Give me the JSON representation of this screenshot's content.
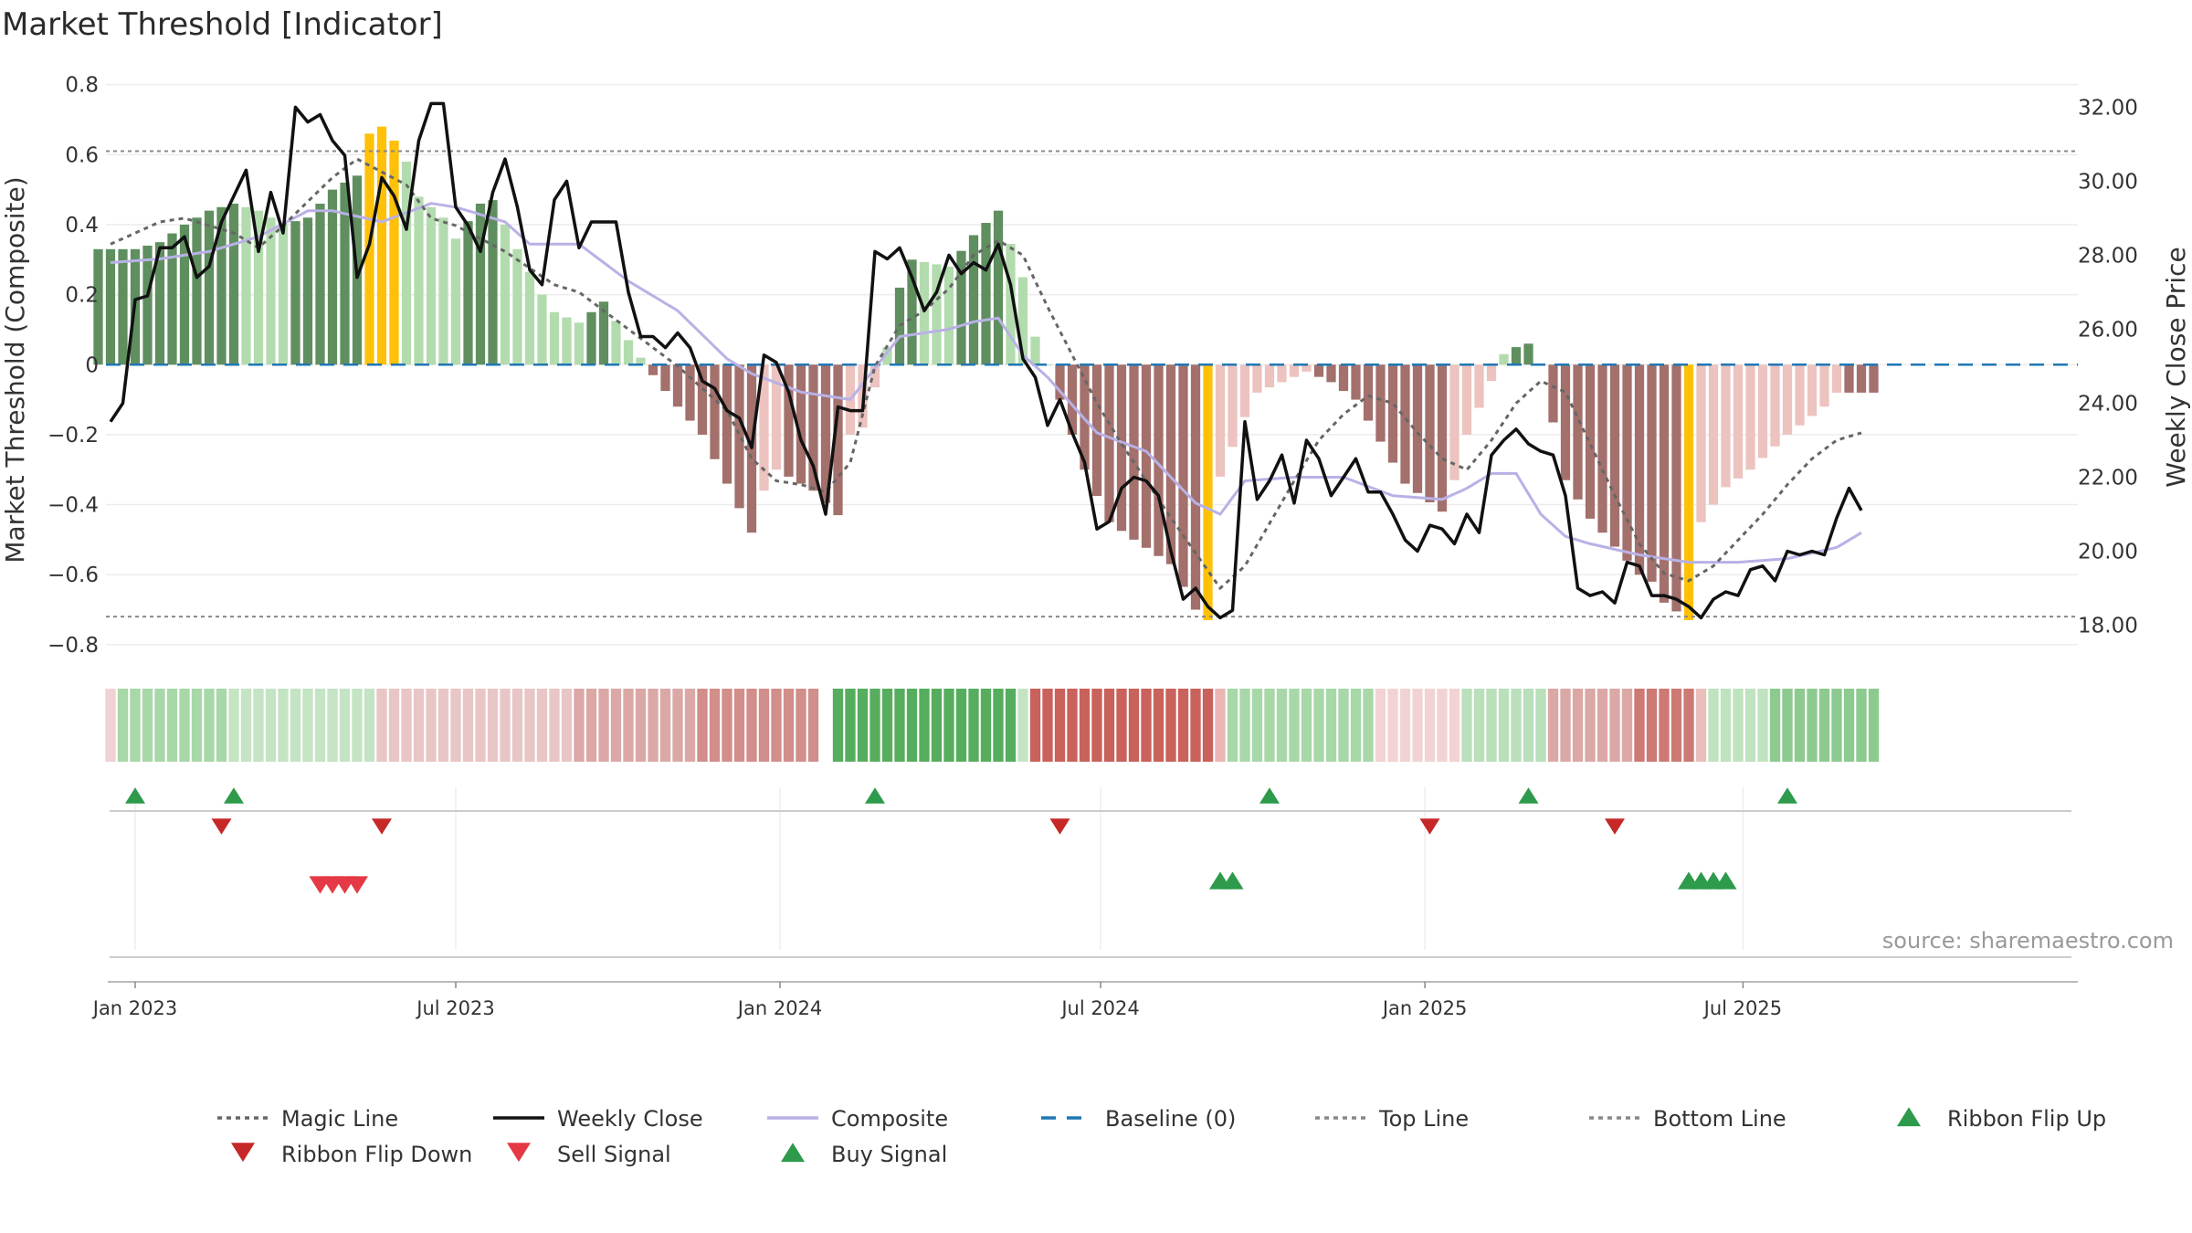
{
  "title": "Market Threshold [Indicator]",
  "source": "source: sharemaestro.com",
  "colors": {
    "bar_green_dark": "#5f8f5f",
    "bar_green_light": "#b3dcae",
    "bar_red_dark": "#a3706c",
    "bar_red_light": "#ecc3bf",
    "bar_extreme": "#ffc107",
    "close": "#111111",
    "composite": "#b9b1e6",
    "magic": "#666666",
    "baseline": "#1f77b4",
    "threshold": "#888888",
    "signal_green": "#2e9a4b",
    "signal_red": "#d32f2f"
  },
  "chart_data": {
    "type": "bar+line",
    "title": "Market Threshold [Indicator]",
    "ylabel_left": "Market Threshold (Composite)",
    "ylabel_right": "Weekly Close Price",
    "ylim_left": [
      -0.85,
      0.82
    ],
    "ylim_right": [
      17.0,
      32.8
    ],
    "yticks_left": [
      "0.8",
      "0.6",
      "0.4",
      "0.2",
      "0",
      "−0.2",
      "−0.4",
      "−0.6",
      "−0.8"
    ],
    "yticks_left_values": [
      0.8,
      0.6,
      0.4,
      0.2,
      0,
      -0.2,
      -0.4,
      -0.6,
      -0.8
    ],
    "yticks_right": [
      "32.00",
      "30.00",
      "28.00",
      "26.00",
      "24.00",
      "22.00",
      "20.00",
      "18.00"
    ],
    "yticks_right_values": [
      32,
      30,
      28,
      26,
      24,
      22,
      20,
      18
    ],
    "x_start_week": -3,
    "week_count": 145,
    "xticks": [
      {
        "label": "Jan 2023",
        "week": 0
      },
      {
        "label": "Jul 2023",
        "week": 26
      },
      {
        "label": "Jan 2024",
        "week": 52.3
      },
      {
        "label": "Jul 2024",
        "week": 78.3
      },
      {
        "label": "Jan 2025",
        "week": 104.6
      },
      {
        "label": "Jul 2025",
        "week": 130.4
      }
    ],
    "top_line": 0.61,
    "bottom_line": -0.72,
    "baseline": 0,
    "composite_knots": [
      [
        0,
        0.33
      ],
      [
        2,
        0.35
      ],
      [
        4,
        0.4
      ],
      [
        6,
        0.44
      ],
      [
        8,
        0.46
      ],
      [
        10,
        0.44
      ],
      [
        12,
        0.4
      ],
      [
        14,
        0.42
      ],
      [
        16,
        0.5
      ],
      [
        18,
        0.54
      ],
      [
        19,
        0.66
      ],
      [
        20,
        0.68
      ],
      [
        21,
        0.64
      ],
      [
        22,
        0.58
      ],
      [
        23,
        0.48
      ],
      [
        25,
        0.42
      ],
      [
        26,
        0.36
      ],
      [
        28,
        0.46
      ],
      [
        29,
        0.47
      ],
      [
        31,
        0.33
      ],
      [
        33,
        0.2
      ],
      [
        34,
        0.15
      ],
      [
        36,
        0.12
      ],
      [
        38,
        0.18
      ],
      [
        40,
        0.07
      ],
      [
        41,
        0.02
      ],
      [
        42,
        -0.03
      ],
      [
        44,
        -0.12
      ],
      [
        46,
        -0.2
      ],
      [
        48,
        -0.34
      ],
      [
        50,
        -0.48
      ],
      [
        51,
        -0.36
      ],
      [
        52,
        -0.3
      ],
      [
        55,
        -0.36
      ],
      [
        57,
        -0.43
      ],
      [
        58,
        -0.2
      ],
      [
        59,
        -0.18
      ],
      [
        61,
        0.05
      ],
      [
        62,
        0.22
      ],
      [
        63,
        0.3
      ],
      [
        66,
        0.28
      ],
      [
        68,
        0.37
      ],
      [
        70,
        0.44
      ],
      [
        72,
        0.25
      ],
      [
        73,
        0.08
      ],
      [
        74,
        0
      ],
      [
        75,
        -0.1
      ],
      [
        77,
        -0.3
      ],
      [
        79,
        -0.45
      ],
      [
        81,
        -0.5
      ],
      [
        84,
        -0.57
      ],
      [
        86,
        -0.7
      ],
      [
        87,
        -0.73
      ],
      [
        88,
        -0.32
      ],
      [
        90,
        -0.15
      ],
      [
        91,
        -0.08
      ],
      [
        93,
        -0.05
      ],
      [
        95,
        -0.02
      ],
      [
        97,
        -0.05
      ],
      [
        99,
        -0.1
      ],
      [
        101,
        -0.22
      ],
      [
        103,
        -0.34
      ],
      [
        106,
        -0.42
      ],
      [
        107,
        -0.33
      ],
      [
        108,
        -0.2
      ],
      [
        111,
        0.03
      ],
      [
        112,
        0.05
      ],
      [
        113,
        0.06
      ],
      [
        114,
        0
      ],
      [
        116,
        -0.33
      ],
      [
        118,
        -0.44
      ],
      [
        120,
        -0.52
      ],
      [
        122,
        -0.6
      ],
      [
        123,
        -0.62
      ],
      [
        124,
        -0.68
      ],
      [
        126,
        -0.73
      ],
      [
        127,
        -0.45
      ],
      [
        129,
        -0.35
      ],
      [
        131,
        -0.3
      ],
      [
        134,
        -0.2
      ],
      [
        137,
        -0.12
      ],
      [
        138,
        -0.08
      ]
    ],
    "close_knots": [
      [
        -2,
        23.5
      ],
      [
        -1,
        24.0
      ],
      [
        0,
        26.8
      ],
      [
        1,
        26.9
      ],
      [
        2,
        28.2
      ],
      [
        3,
        28.2
      ],
      [
        4,
        28.5
      ],
      [
        5,
        27.4
      ],
      [
        6,
        27.7
      ],
      [
        7,
        28.9
      ],
      [
        8,
        29.6
      ],
      [
        9,
        30.3
      ],
      [
        10,
        28.1
      ],
      [
        11,
        29.7
      ],
      [
        12,
        28.6
      ],
      [
        13,
        32.0
      ],
      [
        14,
        31.6
      ],
      [
        15,
        31.8
      ],
      [
        16,
        31.1
      ],
      [
        17,
        30.7
      ],
      [
        18,
        27.4
      ],
      [
        19,
        28.3
      ],
      [
        20,
        30.1
      ],
      [
        21,
        29.6
      ],
      [
        22,
        28.7
      ],
      [
        23,
        31.1
      ],
      [
        24,
        32.1
      ],
      [
        25,
        32.1
      ],
      [
        26,
        29.3
      ],
      [
        27,
        28.8
      ],
      [
        28,
        28.1
      ],
      [
        29,
        29.7
      ],
      [
        30,
        30.6
      ],
      [
        31,
        29.3
      ],
      [
        32,
        27.6
      ],
      [
        33,
        27.2
      ],
      [
        34,
        29.5
      ],
      [
        35,
        30.0
      ],
      [
        36,
        28.2
      ],
      [
        37,
        28.9
      ],
      [
        38,
        28.9
      ],
      [
        39,
        28.9
      ],
      [
        40,
        27.0
      ],
      [
        41,
        25.8
      ],
      [
        42,
        25.8
      ],
      [
        43,
        25.5
      ],
      [
        44,
        25.9
      ],
      [
        45,
        25.5
      ],
      [
        46,
        24.6
      ],
      [
        47,
        24.4
      ],
      [
        48,
        23.8
      ],
      [
        49,
        23.6
      ],
      [
        50,
        22.8
      ],
      [
        51,
        25.3
      ],
      [
        52,
        25.1
      ],
      [
        53,
        24.3
      ],
      [
        54,
        23.0
      ],
      [
        55,
        22.3
      ],
      [
        56,
        21.0
      ],
      [
        57,
        23.9
      ],
      [
        58,
        23.8
      ],
      [
        59,
        23.8
      ],
      [
        60,
        28.1
      ],
      [
        61,
        27.9
      ],
      [
        62,
        28.2
      ],
      [
        63,
        27.4
      ],
      [
        64,
        26.5
      ],
      [
        65,
        27.0
      ],
      [
        66,
        28.0
      ],
      [
        67,
        27.5
      ],
      [
        68,
        27.8
      ],
      [
        69,
        27.6
      ],
      [
        70,
        28.3
      ],
      [
        71,
        27.2
      ],
      [
        72,
        25.2
      ],
      [
        73,
        24.7
      ],
      [
        74,
        23.4
      ],
      [
        75,
        24.1
      ],
      [
        76,
        23.2
      ],
      [
        77,
        22.4
      ],
      [
        78,
        20.6
      ],
      [
        79,
        20.8
      ],
      [
        80,
        21.7
      ],
      [
        81,
        22.0
      ],
      [
        82,
        21.9
      ],
      [
        83,
        21.5
      ],
      [
        84,
        20.0
      ],
      [
        85,
        18.7
      ],
      [
        86,
        19.0
      ],
      [
        87,
        18.5
      ],
      [
        88,
        18.2
      ],
      [
        89,
        18.4
      ],
      [
        90,
        23.5
      ],
      [
        91,
        21.4
      ],
      [
        92,
        21.9
      ],
      [
        93,
        22.6
      ],
      [
        94,
        21.3
      ],
      [
        95,
        23.0
      ],
      [
        96,
        22.5
      ],
      [
        97,
        21.5
      ],
      [
        98,
        22.0
      ],
      [
        99,
        22.5
      ],
      [
        100,
        21.6
      ],
      [
        101,
        21.6
      ],
      [
        102,
        21.0
      ],
      [
        103,
        20.3
      ],
      [
        104,
        20.0
      ],
      [
        105,
        20.7
      ],
      [
        106,
        20.6
      ],
      [
        107,
        20.2
      ],
      [
        108,
        21.0
      ],
      [
        109,
        20.5
      ],
      [
        110,
        22.6
      ],
      [
        111,
        23.0
      ],
      [
        112,
        23.3
      ],
      [
        113,
        22.9
      ],
      [
        114,
        22.7
      ],
      [
        115,
        22.6
      ],
      [
        116,
        21.5
      ],
      [
        117,
        19.0
      ],
      [
        118,
        18.8
      ],
      [
        119,
        18.9
      ],
      [
        120,
        18.6
      ],
      [
        121,
        19.7
      ],
      [
        122,
        19.6
      ],
      [
        123,
        18.8
      ],
      [
        124,
        18.8
      ],
      [
        125,
        18.7
      ],
      [
        126,
        18.5
      ],
      [
        127,
        18.2
      ],
      [
        128,
        18.7
      ],
      [
        129,
        18.9
      ],
      [
        130,
        18.8
      ],
      [
        131,
        19.5
      ],
      [
        132,
        19.6
      ],
      [
        133,
        19.2
      ],
      [
        134,
        20.0
      ],
      [
        135,
        19.9
      ],
      [
        136,
        20.0
      ],
      [
        137,
        19.9
      ],
      [
        138,
        20.9
      ],
      [
        139,
        21.7
      ],
      [
        140,
        21.1
      ]
    ],
    "composite_line_knots": [
      [
        -2,
        27.8
      ],
      [
        2,
        27.9
      ],
      [
        6,
        28.1
      ],
      [
        10,
        28.5
      ],
      [
        14,
        29.2
      ],
      [
        16,
        29.2
      ],
      [
        20,
        28.9
      ],
      [
        24,
        29.4
      ],
      [
        26,
        29.3
      ],
      [
        30,
        28.9
      ],
      [
        32,
        28.3
      ],
      [
        36,
        28.3
      ],
      [
        40,
        27.3
      ],
      [
        44,
        26.5
      ],
      [
        48,
        25.2
      ],
      [
        50,
        24.8
      ],
      [
        54,
        24.3
      ],
      [
        58,
        24.1
      ],
      [
        62,
        25.8
      ],
      [
        66,
        26.0
      ],
      [
        68,
        26.2
      ],
      [
        70,
        26.3
      ],
      [
        72,
        25.3
      ],
      [
        74,
        24.7
      ],
      [
        78,
        23.2
      ],
      [
        82,
        22.7
      ],
      [
        84,
        22.0
      ],
      [
        86,
        21.3
      ],
      [
        88,
        21.0
      ],
      [
        90,
        21.9
      ],
      [
        94,
        22.0
      ],
      [
        98,
        22.0
      ],
      [
        102,
        21.5
      ],
      [
        106,
        21.4
      ],
      [
        108,
        21.7
      ],
      [
        110,
        22.1
      ],
      [
        112,
        22.1
      ],
      [
        114,
        21.0
      ],
      [
        116,
        20.4
      ],
      [
        118,
        20.2
      ],
      [
        122,
        19.9
      ],
      [
        126,
        19.7
      ],
      [
        130,
        19.7
      ],
      [
        134,
        19.8
      ],
      [
        138,
        20.1
      ],
      [
        140,
        20.5
      ]
    ],
    "magic_line_knots": [
      [
        -2,
        28.3
      ],
      [
        2,
        28.9
      ],
      [
        4,
        29.0
      ],
      [
        8,
        28.6
      ],
      [
        10,
        28.2
      ],
      [
        12,
        28.8
      ],
      [
        16,
        30.1
      ],
      [
        18,
        30.6
      ],
      [
        22,
        29.9
      ],
      [
        24,
        29.0
      ],
      [
        26,
        28.8
      ],
      [
        30,
        28.1
      ],
      [
        34,
        27.2
      ],
      [
        36,
        27.0
      ],
      [
        40,
        26.0
      ],
      [
        44,
        25.0
      ],
      [
        48,
        23.8
      ],
      [
        50,
        22.5
      ],
      [
        52,
        21.9
      ],
      [
        54,
        21.8
      ],
      [
        56,
        21.6
      ],
      [
        58,
        22.4
      ],
      [
        60,
        25.0
      ],
      [
        62,
        26.1
      ],
      [
        64,
        26.5
      ],
      [
        66,
        27.1
      ],
      [
        68,
        28.0
      ],
      [
        70,
        28.4
      ],
      [
        72,
        28.0
      ],
      [
        74,
        26.6
      ],
      [
        76,
        25.3
      ],
      [
        78,
        24.0
      ],
      [
        80,
        22.9
      ],
      [
        84,
        20.9
      ],
      [
        88,
        19.0
      ],
      [
        90,
        19.6
      ],
      [
        94,
        21.9
      ],
      [
        96,
        23.0
      ],
      [
        98,
        23.7
      ],
      [
        100,
        24.2
      ],
      [
        102,
        24.0
      ],
      [
        104,
        23.2
      ],
      [
        106,
        22.5
      ],
      [
        108,
        22.2
      ],
      [
        110,
        23.0
      ],
      [
        112,
        24.0
      ],
      [
        114,
        24.6
      ],
      [
        116,
        24.3
      ],
      [
        118,
        22.9
      ],
      [
        120,
        21.5
      ],
      [
        122,
        20.2
      ],
      [
        124,
        19.4
      ],
      [
        126,
        19.2
      ],
      [
        128,
        19.6
      ],
      [
        130,
        20.3
      ],
      [
        132,
        21.0
      ],
      [
        134,
        21.8
      ],
      [
        136,
        22.5
      ],
      [
        138,
        23.0
      ],
      [
        140,
        23.2
      ]
    ],
    "ribbon_bands": [
      [
        -2,
        "#f0d2d2"
      ],
      [
        -1,
        "#a8d7a8"
      ],
      [
        8,
        "#c4e4c4"
      ],
      [
        20,
        "#e9c6c6"
      ],
      [
        36,
        "#dba8a6"
      ],
      [
        46,
        "#d18e8b"
      ],
      [
        56,
        null
      ],
      [
        57,
        "#57ad5e"
      ],
      [
        72,
        "#c4e4c4"
      ],
      [
        73,
        "#c9625b"
      ],
      [
        88,
        "#e9b7b4"
      ],
      [
        89,
        "#a8d7a8"
      ],
      [
        101,
        "#f2d3d3"
      ],
      [
        108,
        "#b9dfbb"
      ],
      [
        115,
        "#dba8a6"
      ],
      [
        122,
        "#cd7974"
      ],
      [
        127,
        "#e9bfbc"
      ],
      [
        128,
        "#bfe2bf"
      ],
      [
        133,
        "#8dca8f"
      ]
    ],
    "ribbon_flip_up_weeks": [
      0,
      8,
      60,
      92,
      113,
      134
    ],
    "ribbon_flip_down_weeks": [
      7,
      20,
      75,
      105,
      120
    ],
    "sell_signal_weeks": [
      15,
      16,
      17,
      18
    ],
    "buy_signal_weeks": [
      88,
      89,
      126,
      127,
      128,
      129
    ]
  },
  "legend": [
    {
      "label": "Magic Line",
      "kind": "dotted",
      "color": "#666666"
    },
    {
      "label": "Weekly Close",
      "kind": "solid",
      "color": "#111111"
    },
    {
      "label": "Composite",
      "kind": "solid",
      "color": "#b9b1e6"
    },
    {
      "label": "Baseline (0)",
      "kind": "dashed",
      "color": "#1f77b4"
    },
    {
      "label": "Top Line",
      "kind": "dotted",
      "color": "#888888"
    },
    {
      "label": "Bottom Line",
      "kind": "dotted",
      "color": "#888888"
    },
    {
      "label": "Ribbon Flip Up",
      "kind": "tri-up",
      "color": "#2e9a4b"
    },
    {
      "label": "Ribbon Flip Down",
      "kind": "tri-down",
      "color": "#c62828"
    },
    {
      "label": "Sell Signal",
      "kind": "tri-down",
      "color": "#e53945"
    },
    {
      "label": "Buy Signal",
      "kind": "tri-up",
      "color": "#2e9a4b"
    }
  ]
}
